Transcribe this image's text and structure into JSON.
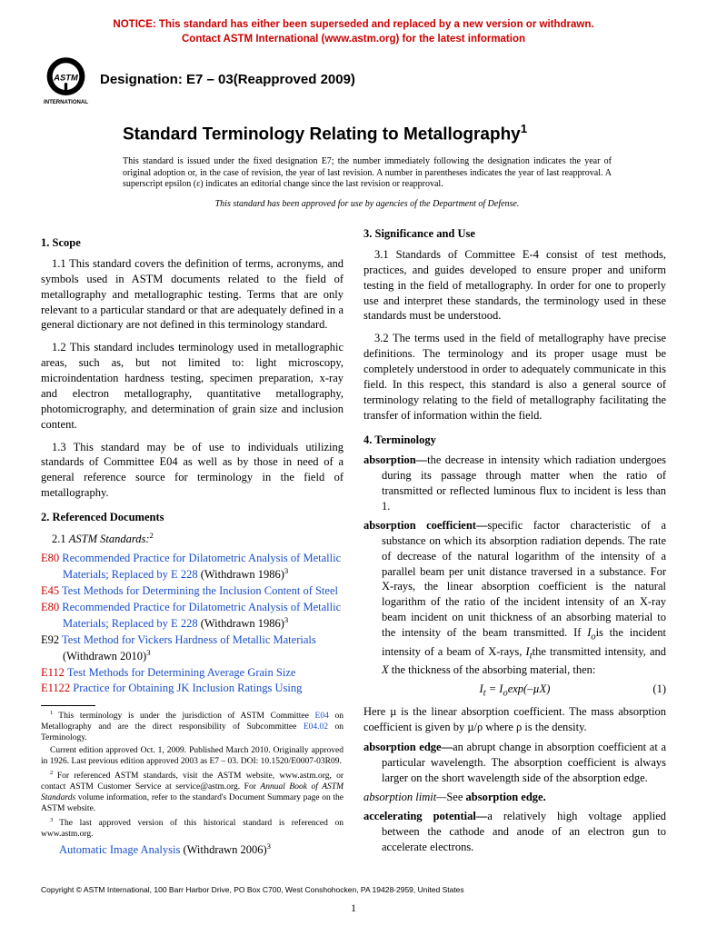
{
  "notice": {
    "line1": "NOTICE: This standard has either been superseded and replaced by a new version or withdrawn.",
    "line2": "Contact ASTM International (www.astm.org) for the latest information",
    "color": "#cc0000"
  },
  "logo": {
    "top_text": "ASTM",
    "bottom_text": "INTERNATIONAL",
    "fill": "#000000"
  },
  "designation": "Designation: E7 – 03(Reapproved 2009)",
  "title": "Standard Terminology Relating to Metallography",
  "title_super": "1",
  "issuance": "This standard is issued under the fixed designation E7; the number immediately following the designation indicates the year of original adoption or, in the case of revision, the year of last revision. A number in parentheses indicates the year of last reapproval. A superscript epsilon (ε) indicates an editorial change since the last revision or reapproval.",
  "dod": "This standard has been approved for use by agencies of the Department of Defense.",
  "sections": {
    "scope": {
      "head": "1. Scope",
      "p1": "1.1 This standard covers the definition of terms, acronyms, and symbols used in ASTM documents related to the field of metallography and metallographic testing. Terms that are only relevant to a particular standard or that are adequately defined in a general dictionary are not defined in this terminology standard.",
      "p2": "1.2 This standard includes terminology used in metallographic areas, such as, but not limited to: light microscopy, microindentation hardness testing, specimen preparation, x-ray and electron metallography, quantitative metallography, photomicrography, and determination of grain size and inclusion content.",
      "p3": "1.3 This standard may be of use to individuals utilizing standards of Committee E04 as well as by those in need of a general reference source for terminology in the field of metallography."
    },
    "refdocs": {
      "head": "2. Referenced Documents",
      "sub": "2.1 ",
      "sub_italic": "ASTM Standards:",
      "sub_super": "2",
      "items": [
        {
          "code": "E80",
          "code_color": "#cc0000",
          "title": "Recommended Practice for Dilatometric Analysis of Metallic Materials; Replaced by E 228",
          "title_color": "#1a4fc9",
          "suffix": " (Withdrawn 1986)",
          "super": "3"
        },
        {
          "code": "E45",
          "code_color": "#cc0000",
          "title": "Test Methods for Determining the Inclusion Content of Steel",
          "title_color": "#1a4fc9",
          "suffix": "",
          "super": ""
        },
        {
          "code": "E80",
          "code_color": "#cc0000",
          "title": "Recommended Practice for Dilatometric Analysis of Metallic Materials; Replaced by E 228",
          "title_color": "#1a4fc9",
          "suffix": " (Withdrawn 1986)",
          "super": "3"
        },
        {
          "code": "E92",
          "code_color": "#000000",
          "title": "Test Method for Vickers Hardness of Metallic Materials",
          "title_color": "#1a4fc9",
          "suffix": " (Withdrawn 2010)",
          "super": "3"
        },
        {
          "code": "E112",
          "code_color": "#cc0000",
          "title": "Test Methods for Determining Average Grain Size",
          "title_color": "#1a4fc9",
          "suffix": "",
          "super": ""
        },
        {
          "code": "E1122",
          "code_color": "#cc0000",
          "title": "Practice for Obtaining JK Inclusion Ratings Using",
          "title_color": "#1a4fc9",
          "suffix": "",
          "super": ""
        }
      ],
      "cont_title": "Automatic Image Analysis",
      "cont_suffix": " (Withdrawn 2006)",
      "cont_super": "3"
    },
    "sig": {
      "head": "3. Significance and Use",
      "p1": "3.1 Standards of Committee E-4 consist of test methods, practices, and guides developed to ensure proper and uniform testing in the field of metallography. In order for one to properly use and interpret these standards, the terminology used in these standards must be understood.",
      "p2": "3.2 The terms used in the field of metallography have precise definitions. The terminology and its proper usage must be completely understood in order to adequately communicate in this field. In this respect, this standard is also a general source of terminology relating to the field of metallography facilitating the transfer of information within the field."
    },
    "terminology": {
      "head": "4. Terminology",
      "entries": {
        "absorption": {
          "term": "absorption—",
          "def": "the decrease in intensity which radiation undergoes during its passage through matter when the ratio of transmitted or reflected luminous flux to incident is less than 1."
        },
        "abs_coeff": {
          "term": "absorption coefficient—",
          "def_a": "specific factor characteristic of a substance on which its absorption radiation depends. The rate of decrease of the natural logarithm of the intensity of a parallel beam per unit distance traversed in a substance. For X-rays, the linear absorption coefficient is the natural logarithm of the ratio of the incident intensity of an X-ray beam incident on unit thickness of an absorbing material to the intensity of the beam transmitted. If ",
          "io": "I",
          "io_sub": "o",
          "def_b": "is the incident intensity of a beam of X-rays, ",
          "it": "I",
          "it_sub": "t",
          "def_c": "the transmitted intensity, and ",
          "x": "X",
          "def_d": " the thickness of the absorbing material, then:"
        },
        "equation": {
          "lhs": "I",
          "lhs_sub": "t",
          "eq": " = I",
          "eq_sub": "o",
          "fn": "exp(–µX)",
          "num": "(1)"
        },
        "after_eq": "Here µ is the linear absorption coefficient. The mass absorption coefficient is given by µ/ρ where ρ is the density.",
        "abs_edge": {
          "term": "absorption edge—",
          "def": "an abrupt change in absorption coefficient at a particular wavelength. The absorption coefficient is always larger on the short wavelength side of the absorption edge."
        },
        "abs_limit": {
          "term": "absorption limit—",
          "see": "See ",
          "ref": "absorption edge."
        },
        "accel": {
          "term": "accelerating potential—",
          "def": "a relatively high voltage applied between the cathode and anode of an electron gun to accelerate electrons."
        }
      }
    }
  },
  "footnotes": {
    "f1_a": "This terminology is under the jurisdiction of ASTM Committee ",
    "f1_link1": "E04",
    "f1_b": " on Metallography and are the direct responsibility of Subcommittee ",
    "f1_link2": "E04.02",
    "f1_c": " on Terminology.",
    "f1_d": "Current edition approved Oct. 1, 2009. Published March 2010. Originally approved in 1926. Last previous edition approved 2003 as E7 – 03. DOI: 10.1520/E0007-03R09.",
    "f2_a": "For referenced ASTM standards, visit the ASTM website, www.astm.org, or contact ASTM Customer Service at service@astm.org. For ",
    "f2_italic": "Annual Book of ASTM Standards",
    "f2_b": " volume information, refer to the standard's Document Summary page on the ASTM website.",
    "f3": "The last approved version of this historical standard is referenced on www.astm.org."
  },
  "copyright": "Copyright © ASTM International, 100 Barr Harbor Drive, PO Box C700, West Conshohocken, PA 19428-2959, United States",
  "page_number": "1",
  "colors": {
    "notice": "#cc0000",
    "link": "#1a4fc9",
    "text": "#000000"
  }
}
